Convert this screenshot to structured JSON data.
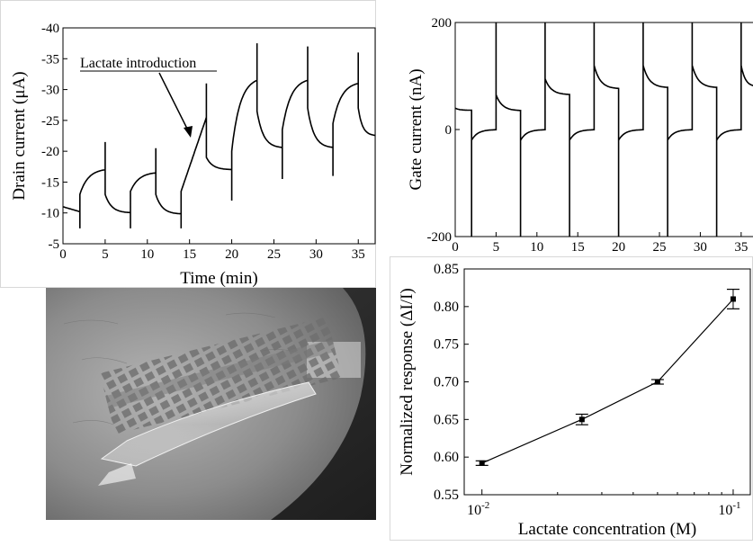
{
  "chart_data": [
    {
      "id": "drain",
      "type": "line",
      "xlabel": "Time (min)",
      "ylabel": "Drain current (μA)",
      "xlim": [
        0,
        37
      ],
      "ylim": [
        -5,
        -40
      ],
      "xticks": [
        0,
        5,
        10,
        15,
        20,
        25,
        30,
        35
      ],
      "yticks": [
        -5,
        -10,
        -15,
        -20,
        -25,
        -30,
        -35,
        -40
      ],
      "annotation": "Lactate introduction",
      "segments": [
        {
          "t0": 0,
          "t1": 2,
          "spike": null,
          "start": -11,
          "end": -10.2,
          "shape": "flat"
        },
        {
          "t0": 2,
          "t1": 5,
          "spike": -7.5,
          "start": -13,
          "end": -17,
          "shape": "rise"
        },
        {
          "t0": 5,
          "t1": 8,
          "spike": -21.5,
          "start": -13,
          "end": -10,
          "shape": "decay"
        },
        {
          "t0": 8,
          "t1": 11,
          "spike": -7.5,
          "start": -13.5,
          "end": -16.5,
          "shape": "rise"
        },
        {
          "t0": 11,
          "t1": 14,
          "spike": -20.5,
          "start": -13,
          "end": -9.8,
          "shape": "decay"
        },
        {
          "t0": 14,
          "t1": 17,
          "spike": -7.5,
          "start": -13.5,
          "end": -25.5,
          "shape": "linear"
        },
        {
          "t0": 17,
          "t1": 20,
          "spike": -31,
          "start": -19,
          "end": -17,
          "shape": "decay"
        },
        {
          "t0": 20,
          "t1": 23,
          "spike": -12,
          "start": -20,
          "end": -31.5,
          "shape": "rise"
        },
        {
          "t0": 23,
          "t1": 26,
          "spike": -37.5,
          "start": -26.5,
          "end": -20.5,
          "shape": "decay"
        },
        {
          "t0": 26,
          "t1": 29,
          "spike": -15.5,
          "start": -23.5,
          "end": -31.5,
          "shape": "rise"
        },
        {
          "t0": 29,
          "t1": 32,
          "spike": -37,
          "start": -27,
          "end": -20.5,
          "shape": "decay"
        },
        {
          "t0": 32,
          "t1": 35,
          "spike": -16,
          "start": -24.5,
          "end": -31,
          "shape": "rise"
        },
        {
          "t0": 35,
          "t1": 37,
          "spike": -36,
          "start": -27,
          "end": -22.5,
          "shape": "decay"
        }
      ]
    },
    {
      "id": "gate",
      "type": "line",
      "xlabel": "",
      "ylabel": "Gate current (nA)",
      "xlim": [
        0,
        37
      ],
      "ylim": [
        -200,
        200
      ],
      "xticks": [
        0,
        5,
        10,
        15,
        20,
        25,
        30,
        35
      ],
      "yticks": [
        -200,
        0,
        200
      ],
      "segments": [
        {
          "t0": 0,
          "t1": 2,
          "spike": null,
          "start": 40,
          "end": 36,
          "shape": "decay"
        },
        {
          "t0": 2,
          "t1": 5,
          "spike": -200,
          "start": -20,
          "end": 0,
          "shape": "decay"
        },
        {
          "t0": 5,
          "t1": 8,
          "spike": 200,
          "start": 65,
          "end": 35,
          "shape": "decay"
        },
        {
          "t0": 8,
          "t1": 11,
          "spike": -200,
          "start": -20,
          "end": 0,
          "shape": "decay"
        },
        {
          "t0": 11,
          "t1": 14,
          "spike": 200,
          "start": 95,
          "end": 65,
          "shape": "decay"
        },
        {
          "t0": 14,
          "t1": 17,
          "spike": -200,
          "start": -20,
          "end": 0,
          "shape": "decay"
        },
        {
          "t0": 17,
          "t1": 20,
          "spike": 200,
          "start": 120,
          "end": 76,
          "shape": "decay"
        },
        {
          "t0": 20,
          "t1": 23,
          "spike": -200,
          "start": -20,
          "end": 0,
          "shape": "decay"
        },
        {
          "t0": 23,
          "t1": 26,
          "spike": 200,
          "start": 120,
          "end": 78,
          "shape": "decay"
        },
        {
          "t0": 26,
          "t1": 29,
          "spike": -200,
          "start": -20,
          "end": 0,
          "shape": "decay"
        },
        {
          "t0": 29,
          "t1": 32,
          "spike": 200,
          "start": 120,
          "end": 78,
          "shape": "decay"
        },
        {
          "t0": 32,
          "t1": 35,
          "spike": -200,
          "start": -20,
          "end": 0,
          "shape": "decay"
        },
        {
          "t0": 35,
          "t1": 37,
          "spike": 200,
          "start": 120,
          "end": 80,
          "shape": "decay"
        }
      ]
    },
    {
      "id": "norm",
      "type": "line",
      "xlabel": "Lactate concentration (M)",
      "ylabel": "Normalized response  (ΔI/I)",
      "xscale": "log",
      "xlim": [
        0.0085,
        0.117
      ],
      "ylim": [
        0.55,
        0.85
      ],
      "xticks": [
        {
          "value": 0.01,
          "base": "10",
          "exp": "-2"
        },
        {
          "value": 0.1,
          "base": "10",
          "exp": "-1"
        }
      ],
      "yticks": [
        "0.55",
        "0.60",
        "0.65",
        "0.70",
        "0.75",
        "0.80",
        "0.85"
      ],
      "x": [
        0.01,
        0.025,
        0.05,
        0.1
      ],
      "y": [
        0.592,
        0.65,
        0.7,
        0.81
      ],
      "err": [
        0.003,
        0.007,
        0.003,
        0.013
      ]
    }
  ]
}
